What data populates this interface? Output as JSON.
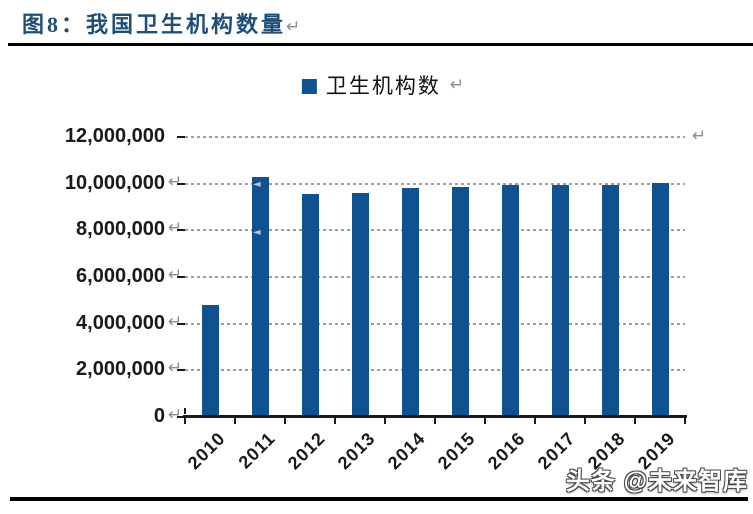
{
  "header": {
    "title": "图8：我国卫生机构数量"
  },
  "legend": {
    "label": "卫生机构数"
  },
  "watermark": {
    "text": "头条 @未来智库"
  },
  "marks": {
    "return_mark": "↵",
    "stray_mark": "◄"
  },
  "colors": {
    "title": "#1F4E79",
    "bar": "#11518F",
    "grid": "#9E9E9E",
    "axis": "#1A1A1A",
    "label": "#1A1A1A",
    "return_mark": "#8C8C8C"
  },
  "chart_data": {
    "type": "bar",
    "title": "图8：我国卫生机构数量",
    "legend": [
      "卫生机构数"
    ],
    "legend_position": "top-center",
    "categories": [
      "2010",
      "2011",
      "2012",
      "2013",
      "2014",
      "2015",
      "2016",
      "2017",
      "2018",
      "2019"
    ],
    "values": [
      4800000,
      10300000,
      9550000,
      9600000,
      9800000,
      9850000,
      9950000,
      9950000,
      9950000,
      10050000
    ],
    "xlabel": "",
    "ylabel": "",
    "ylim": [
      0,
      12000000
    ],
    "ytick_interval": 2000000,
    "ytick_labels": [
      "0",
      "2,000,000",
      "4,000,000",
      "6,000,000",
      "8,000,000",
      "10,000,000",
      "12,000,000"
    ],
    "grid": "horizontal-dotted",
    "bar_color": "#11518F"
  }
}
